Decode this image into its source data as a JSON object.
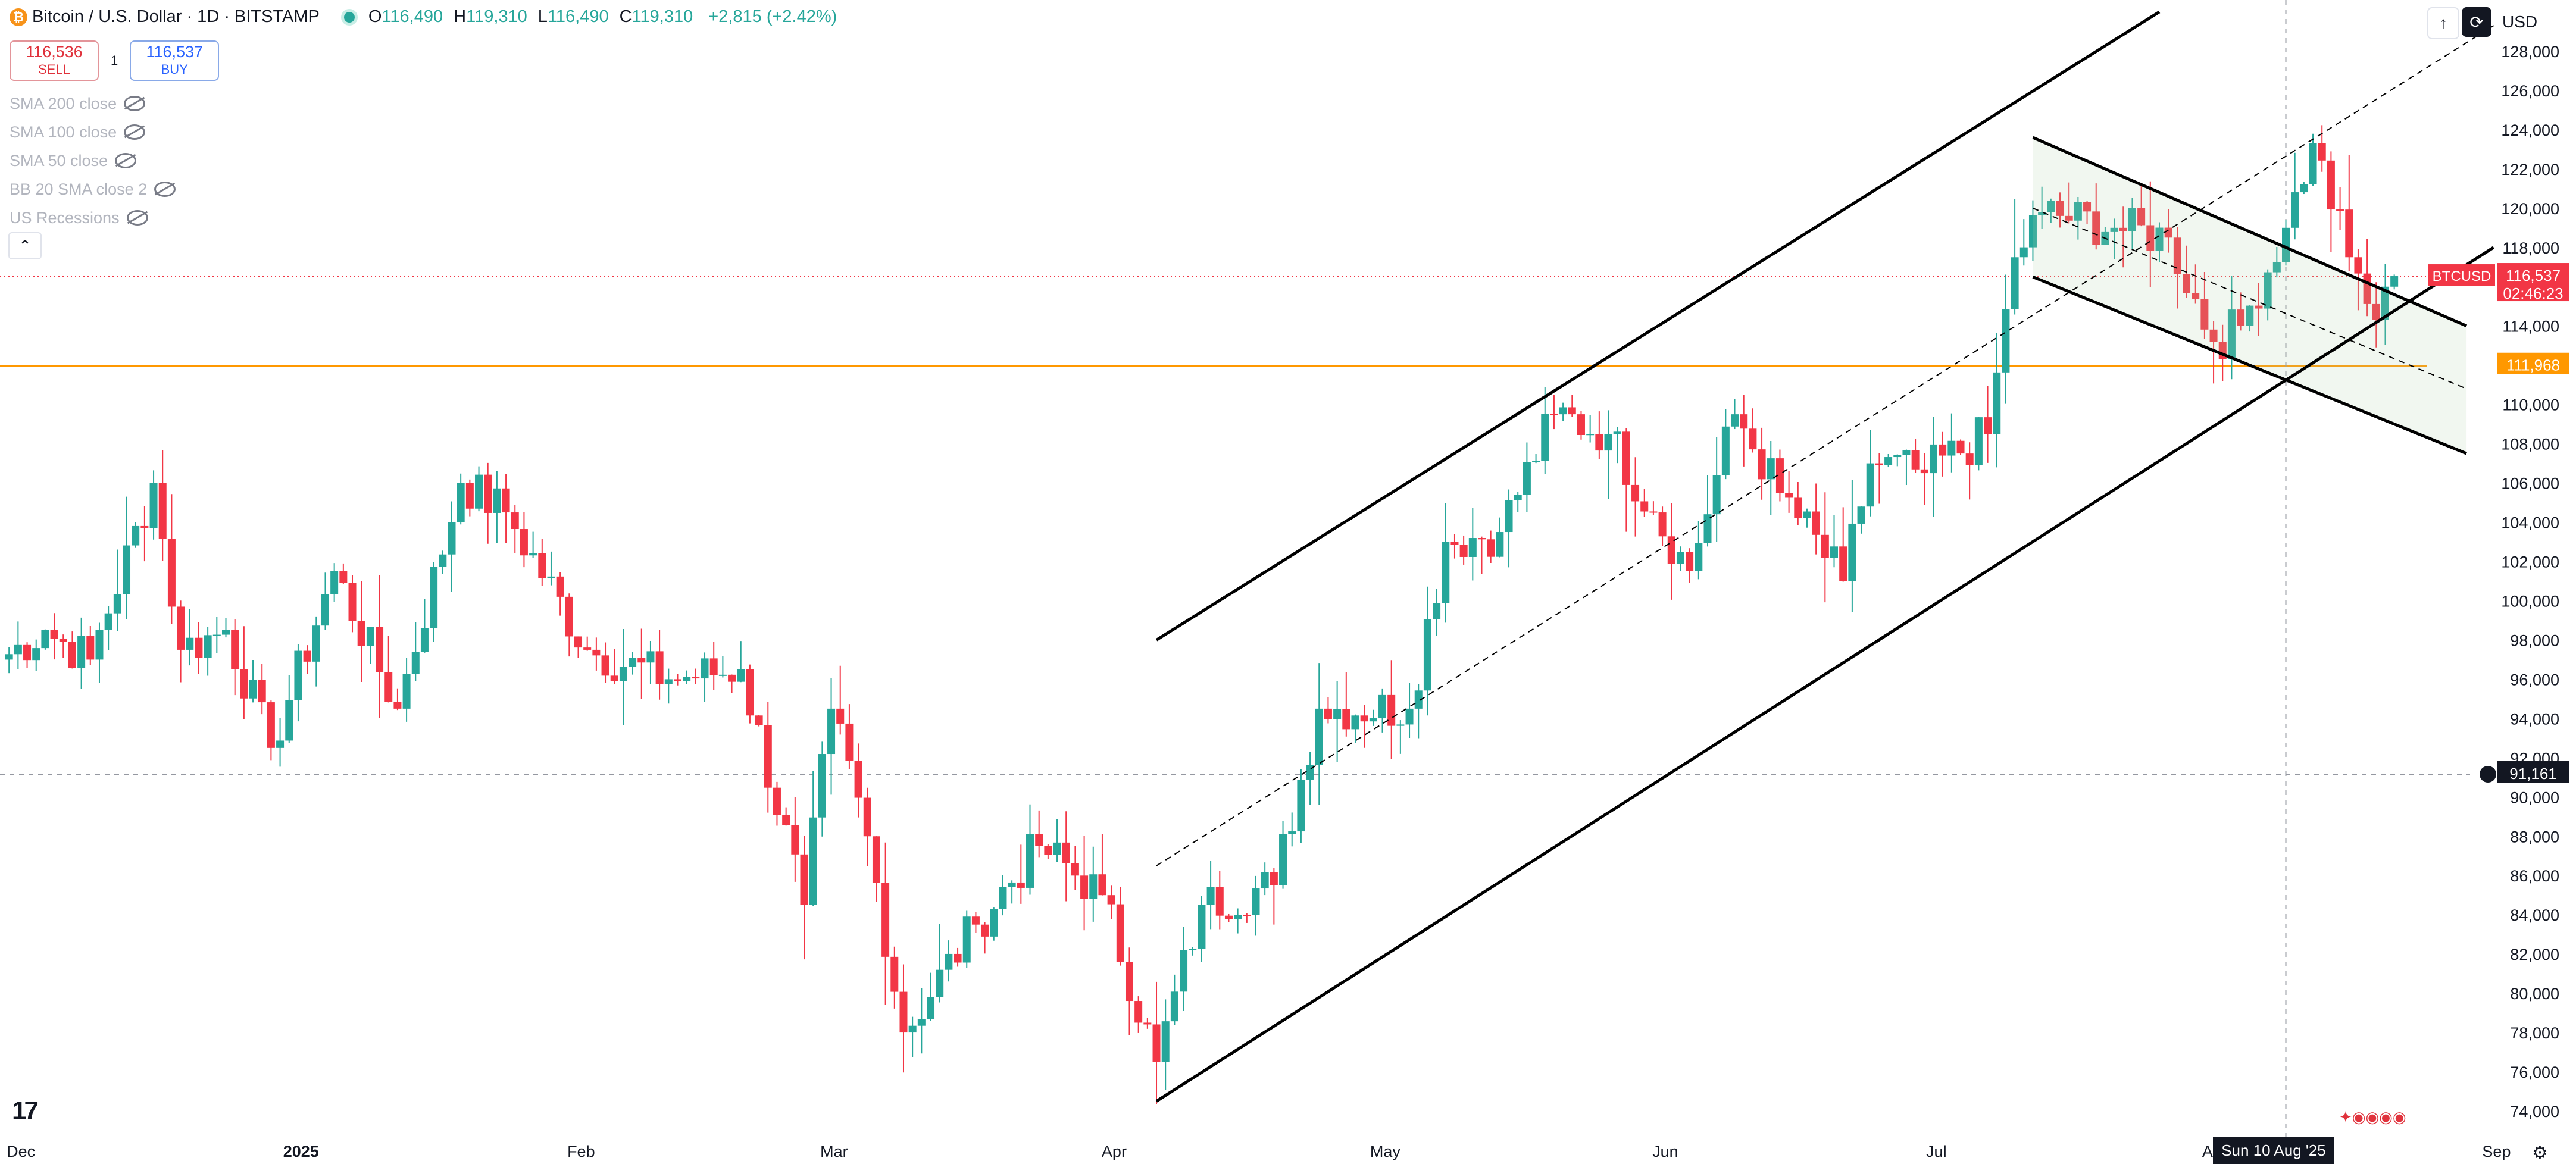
{
  "header": {
    "title": "Bitcoin / U.S. Dollar · 1D · BITSTAMP",
    "ohlc": [
      {
        "key": "O",
        "value": "116,490"
      },
      {
        "key": "H",
        "value": "119,310"
      },
      {
        "key": "L",
        "value": "116,490"
      },
      {
        "key": "C",
        "value": "119,310"
      }
    ],
    "change": "+2,815 (+2.42%)",
    "logo_icon": "bitcoin-icon",
    "logo_glyph": "₿"
  },
  "trade": {
    "sell_price": "116,536",
    "sell_label": "SELL",
    "buy_price": "116,537",
    "buy_label": "BUY",
    "spread": "1"
  },
  "indicators": [
    {
      "label": "SMA 200 close"
    },
    {
      "label": "SMA 100 close"
    },
    {
      "label": "SMA 50 close"
    },
    {
      "label": "BB 20 SMA close 2"
    },
    {
      "label": "US Recessions"
    }
  ],
  "toolbar": {
    "currency": "USD",
    "collapse_glyph": "⌃",
    "up_glyph": "↑",
    "sync_glyph": "⟳",
    "gear_glyph": "⚙",
    "tv_logo": "17"
  },
  "crosshair": {
    "date_label": "Sun 10 Aug '25",
    "price_label": "91,161",
    "price": 91161
  },
  "price_tags": [
    {
      "label": "BTCUSD",
      "value": "116,537",
      "countdown": "02:46:23",
      "price": 116537,
      "color": "#f23645"
    },
    {
      "label": "",
      "value": "111,968",
      "countdown": "",
      "price": 111968,
      "color": "#ff9800"
    }
  ],
  "chart_data": {
    "type": "candlestick",
    "symbol": "BTCUSD",
    "exchange": "BITSTAMP",
    "interval": "1D",
    "currency": "USD",
    "y_axis": {
      "range": [
        73000,
        130000
      ],
      "ticks": [
        74000,
        76000,
        78000,
        80000,
        82000,
        84000,
        86000,
        88000,
        90000,
        92000,
        94000,
        96000,
        98000,
        100000,
        102000,
        104000,
        106000,
        108000,
        110000,
        112000,
        114000,
        116000,
        118000,
        120000,
        122000,
        124000,
        126000,
        128000
      ]
    },
    "x_axis": {
      "start": "2024-11-30",
      "end": "2025-09-04",
      "labels": [
        {
          "text": "Dec",
          "date": "2024-12-01"
        },
        {
          "text": "2025",
          "date": "2025-01-01",
          "bold": true
        },
        {
          "text": "Feb",
          "date": "2025-02-01"
        },
        {
          "text": "Mar",
          "date": "2025-03-01"
        },
        {
          "text": "Apr",
          "date": "2025-04-01"
        },
        {
          "text": "May",
          "date": "2025-05-01"
        },
        {
          "text": "Jun",
          "date": "2025-06-01"
        },
        {
          "text": "Jul",
          "date": "2025-07-01"
        },
        {
          "text": "Aug",
          "date": "2025-08-01"
        },
        {
          "text": "Sep",
          "date": "2025-09-01"
        }
      ]
    },
    "colors": {
      "up": "#26a69a",
      "down": "#f23645"
    },
    "anchors": [
      [
        "2024-11-30",
        97000
      ],
      [
        "2024-12-05",
        98500
      ],
      [
        "2024-12-10",
        97000
      ],
      [
        "2024-12-17",
        106000
      ],
      [
        "2024-12-20",
        97500
      ],
      [
        "2024-12-25",
        98500
      ],
      [
        "2024-12-30",
        92500
      ],
      [
        "2025-01-06",
        101500
      ],
      [
        "2025-01-13",
        94500
      ],
      [
        "2025-01-20",
        106000
      ],
      [
        "2025-01-25",
        104500
      ],
      [
        "2025-02-03",
        97500
      ],
      [
        "2025-02-12",
        96000
      ],
      [
        "2025-02-20",
        96500
      ],
      [
        "2025-02-27",
        84500
      ],
      [
        "2025-03-02",
        94500
      ],
      [
        "2025-03-06",
        88000
      ],
      [
        "2025-03-10",
        78000
      ],
      [
        "2025-03-18",
        83500
      ],
      [
        "2025-03-25",
        87500
      ],
      [
        "2025-04-01",
        85000
      ],
      [
        "2025-04-07",
        76500
      ],
      [
        "2025-04-12",
        84500
      ],
      [
        "2025-04-20",
        85500
      ],
      [
        "2025-04-25",
        94500
      ],
      [
        "2025-05-05",
        94500
      ],
      [
        "2025-05-09",
        103000
      ],
      [
        "2025-05-15",
        103500
      ],
      [
        "2025-05-21",
        109500
      ],
      [
        "2025-05-27",
        108500
      ],
      [
        "2025-06-01",
        104500
      ],
      [
        "2025-06-05",
        101500
      ],
      [
        "2025-06-10",
        109500
      ],
      [
        "2025-06-15",
        105500
      ],
      [
        "2025-06-22",
        101000
      ],
      [
        "2025-06-25",
        107000
      ],
      [
        "2025-07-01",
        106500
      ],
      [
        "2025-07-08",
        108500
      ],
      [
        "2025-07-11",
        117500
      ],
      [
        "2025-07-14",
        119800
      ],
      [
        "2025-07-22",
        119000
      ],
      [
        "2025-07-28",
        118500
      ],
      [
        "2025-08-02",
        113200
      ],
      [
        "2025-08-05",
        114000
      ],
      [
        "2025-08-10",
        119000
      ],
      [
        "2025-08-13",
        123300
      ],
      [
        "2025-08-17",
        117500
      ],
      [
        "2025-08-20",
        114300
      ],
      [
        "2025-08-21",
        116000
      ],
      [
        "2025-08-22",
        116537
      ]
    ],
    "trendlines": [
      {
        "name": "channel-upper",
        "from": [
          "2025-04-07",
          98000
        ],
        "to": [
          "2025-07-27",
          130000
        ],
        "style": "solid"
      },
      {
        "name": "channel-lower",
        "from": [
          "2025-04-07",
          74500
        ],
        "to": [
          "2025-09-02",
          118000
        ],
        "style": "solid"
      },
      {
        "name": "channel-mid",
        "from": [
          "2025-04-07",
          86500
        ],
        "to": [
          "2025-09-02",
          129300
        ],
        "style": "dashed"
      },
      {
        "name": "flag-upper",
        "from": [
          "2025-07-13",
          123600
        ],
        "to": [
          "2025-08-30",
          114000
        ],
        "style": "solid"
      },
      {
        "name": "flag-lower",
        "from": [
          "2025-07-13",
          116500
        ],
        "to": [
          "2025-08-30",
          107500
        ],
        "style": "solid"
      },
      {
        "name": "flag-mid",
        "from": [
          "2025-07-13",
          120000
        ],
        "to": [
          "2025-08-30",
          110800
        ],
        "style": "dashed"
      }
    ]
  }
}
